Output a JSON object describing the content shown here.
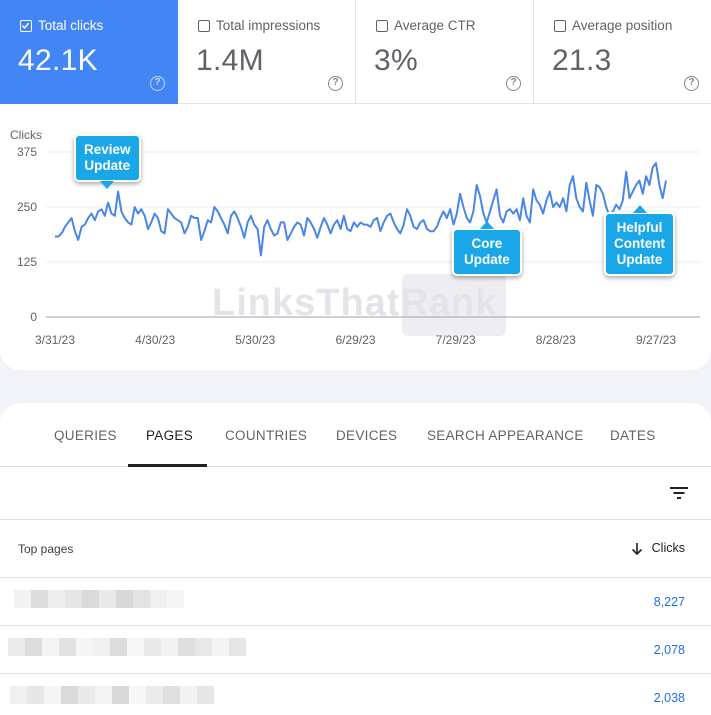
{
  "metrics": [
    {
      "label": "Total clicks",
      "value": "42.1K",
      "active": true
    },
    {
      "label": "Total impressions",
      "value": "1.4M",
      "active": false
    },
    {
      "label": "Average CTR",
      "value": "3%",
      "active": false
    },
    {
      "label": "Average position",
      "value": "21.3",
      "active": false
    }
  ],
  "help_glyph": "?",
  "watermark": "LinksThatRank",
  "colors": {
    "accent": "#4285f4",
    "line": "#4a86e8",
    "callout": "#1aa7e8",
    "link": "#1a73e8"
  },
  "callouts": {
    "review": [
      "Review",
      "Update"
    ],
    "core": [
      "Core",
      "Update"
    ],
    "helpful": [
      "Helpful",
      "Content",
      "Update"
    ]
  },
  "chart_data": {
    "type": "line",
    "ylabel": "Clicks",
    "ylim": [
      0,
      400
    ],
    "yticks": [
      0,
      125,
      250,
      375
    ],
    "xtick_labels": [
      "3/31/23",
      "4/30/23",
      "5/30/23",
      "6/29/23",
      "7/29/23",
      "8/28/23",
      "9/27/23"
    ],
    "x_start": "3/31/23",
    "x_end": "10/1/23",
    "grid": true,
    "series": [
      {
        "values": [
          183,
          183,
          190,
          205,
          215,
          225,
          195,
          175,
          205,
          210,
          225,
          235,
          220,
          240,
          245,
          230,
          260,
          235,
          230,
          285,
          240,
          225,
          215,
          210,
          250,
          235,
          245,
          230,
          200,
          215,
          235,
          225,
          195,
          190,
          245,
          235,
          225,
          220,
          215,
          190,
          205,
          230,
          225,
          225,
          175,
          195,
          220,
          215,
          250,
          240,
          225,
          210,
          190,
          230,
          240,
          225,
          205,
          180,
          215,
          230,
          210,
          200,
          140,
          205,
          220,
          200,
          185,
          190,
          215,
          215,
          175,
          190,
          205,
          215,
          210,
          185,
          225,
          215,
          200,
          180,
          205,
          225,
          210,
          190,
          210,
          220,
          200,
          230,
          200,
          195,
          215,
          205,
          215,
          210,
          210,
          205,
          220,
          225,
          195,
          215,
          230,
          235,
          215,
          200,
          190,
          210,
          245,
          230,
          205,
          200,
          215,
          220,
          200,
          195,
          195,
          205,
          225,
          240,
          225,
          245,
          210,
          235,
          280,
          250,
          225,
          215,
          240,
          300,
          275,
          235,
          215,
          240,
          265,
          290,
          230,
          215,
          240,
          245,
          235,
          245,
          220,
          270,
          230,
          215,
          290,
          265,
          255,
          235,
          265,
          285,
          250,
          260,
          250,
          270,
          240,
          300,
          320,
          270,
          250,
          240,
          305,
          265,
          230,
          300,
          295,
          280,
          250,
          230,
          240,
          255,
          245,
          265,
          330,
          270,
          285,
          300,
          310,
          280,
          320,
          300,
          340,
          350,
          300,
          270,
          310
        ]
      }
    ],
    "annotations": [
      {
        "label": "Review Update",
        "x": "4/11/23"
      },
      {
        "label": "Core Update",
        "x": "8/16/23"
      },
      {
        "label": "Helpful Content Update",
        "x": "9/14/23"
      }
    ]
  },
  "tabs": [
    {
      "label": "QUERIES",
      "active": false
    },
    {
      "label": "PAGES",
      "active": true
    },
    {
      "label": "COUNTRIES",
      "active": false
    },
    {
      "label": "DEVICES",
      "active": false
    },
    {
      "label": "SEARCH APPEARANCE",
      "active": false
    },
    {
      "label": "DATES",
      "active": false
    }
  ],
  "table": {
    "col_pages": "Top pages",
    "col_clicks": "Clicks",
    "sort_icon": "arrow-down-icon",
    "filter_icon": "filter-icon",
    "rows": [
      {
        "clicks": "8,227"
      },
      {
        "clicks": "2,078"
      },
      {
        "clicks": "2,038"
      }
    ]
  }
}
